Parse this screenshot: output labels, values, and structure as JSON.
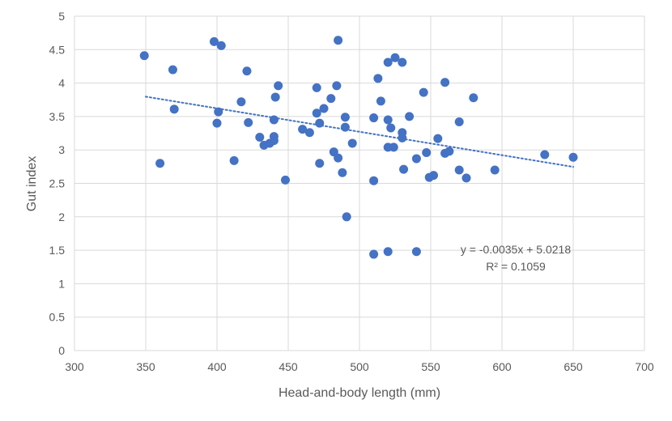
{
  "chart_data": {
    "type": "scatter",
    "title": "",
    "xlabel": "Head-and-body length (mm)",
    "ylabel": "Gut index",
    "xlim": [
      300,
      700
    ],
    "ylim": [
      0,
      5
    ],
    "xticks": [
      300,
      350,
      400,
      450,
      500,
      550,
      600,
      650,
      700
    ],
    "yticks": [
      0,
      0.5,
      1,
      1.5,
      2,
      2.5,
      3,
      3.5,
      4,
      4.5,
      5
    ],
    "grid": "vertical and horizontal major gridlines",
    "legend": "none",
    "marker_color": "#4472C4",
    "trendline": {
      "type": "linear",
      "style": "dotted",
      "color": "#4472C4",
      "slope": -0.0035,
      "intercept": 5.0218,
      "x_range": [
        350,
        650
      ],
      "equation_label": "y = -0.0035x + 5.0218",
      "r2_label": "R² = 0.1059"
    },
    "series": [
      {
        "points": [
          [
            349,
            4.41
          ],
          [
            360,
            2.8
          ],
          [
            369,
            4.2
          ],
          [
            370,
            3.61
          ],
          [
            398,
            4.62
          ],
          [
            400,
            3.4
          ],
          [
            401,
            3.57
          ],
          [
            403,
            4.56
          ],
          [
            412,
            2.84
          ],
          [
            417,
            3.72
          ],
          [
            421,
            4.18
          ],
          [
            422,
            3.41
          ],
          [
            430,
            3.19
          ],
          [
            433,
            3.07
          ],
          [
            437,
            3.1
          ],
          [
            440,
            3.14
          ],
          [
            440,
            3.2
          ],
          [
            440,
            3.45
          ],
          [
            441,
            3.79
          ],
          [
            443,
            3.96
          ],
          [
            448,
            2.55
          ],
          [
            460,
            3.31
          ],
          [
            465,
            3.26
          ],
          [
            470,
            3.93
          ],
          [
            470,
            3.55
          ],
          [
            472,
            2.8
          ],
          [
            472,
            3.4
          ],
          [
            475,
            3.62
          ],
          [
            480,
            3.77
          ],
          [
            482,
            2.97
          ],
          [
            484,
            3.96
          ],
          [
            485,
            2.88
          ],
          [
            485,
            4.64
          ],
          [
            488,
            2.66
          ],
          [
            490,
            3.34
          ],
          [
            490,
            3.49
          ],
          [
            491,
            2.0
          ],
          [
            495,
            3.1
          ],
          [
            510,
            2.54
          ],
          [
            510,
            3.48
          ],
          [
            510,
            1.44
          ],
          [
            513,
            4.07
          ],
          [
            515,
            3.73
          ],
          [
            520,
            4.31
          ],
          [
            520,
            3.45
          ],
          [
            520,
            3.04
          ],
          [
            520,
            1.48
          ],
          [
            522,
            3.33
          ],
          [
            524,
            3.04
          ],
          [
            525,
            4.38
          ],
          [
            530,
            4.31
          ],
          [
            530,
            3.26
          ],
          [
            530,
            3.18
          ],
          [
            531,
            2.71
          ],
          [
            535,
            3.5
          ],
          [
            540,
            2.87
          ],
          [
            540,
            1.48
          ],
          [
            545,
            3.86
          ],
          [
            547,
            2.96
          ],
          [
            549,
            2.59
          ],
          [
            552,
            2.62
          ],
          [
            555,
            3.17
          ],
          [
            560,
            4.01
          ],
          [
            560,
            2.95
          ],
          [
            563,
            2.98
          ],
          [
            570,
            3.42
          ],
          [
            570,
            2.7
          ],
          [
            575,
            2.58
          ],
          [
            580,
            3.78
          ],
          [
            595,
            2.7
          ],
          [
            630,
            2.93
          ],
          [
            650,
            2.89
          ]
        ]
      }
    ]
  }
}
